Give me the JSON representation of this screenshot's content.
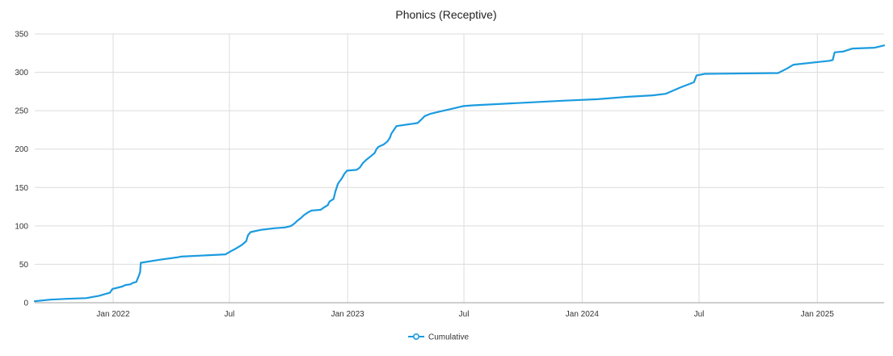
{
  "chart_data": {
    "type": "line",
    "title": "Phonics (Receptive)",
    "xlabel": "",
    "ylabel": "",
    "x_axis": {
      "type": "date",
      "range": [
        "2021-09-01",
        "2025-04-15"
      ],
      "ticks": [
        {
          "date": "2022-01-01",
          "label": "Jan 2022"
        },
        {
          "date": "2022-07-01",
          "label": "Jul"
        },
        {
          "date": "2023-01-01",
          "label": "Jan 2023"
        },
        {
          "date": "2023-07-01",
          "label": "Jul"
        },
        {
          "date": "2024-01-01",
          "label": "Jan 2024"
        },
        {
          "date": "2024-07-01",
          "label": "Jul"
        },
        {
          "date": "2025-01-01",
          "label": "Jan 2025"
        }
      ]
    },
    "y_axis": {
      "range": [
        0,
        350
      ],
      "ticks": [
        0,
        50,
        100,
        150,
        200,
        250,
        300,
        350
      ]
    },
    "grid": true,
    "legend": {
      "position": "bottom-center"
    },
    "colors": {
      "series": "#1a9be0"
    },
    "series": [
      {
        "name": "Cumulative",
        "points": [
          [
            "2021-09-01",
            2
          ],
          [
            "2021-09-25",
            4
          ],
          [
            "2021-10-20",
            5
          ],
          [
            "2021-11-20",
            6
          ],
          [
            "2021-12-10",
            9
          ],
          [
            "2021-12-27",
            13
          ],
          [
            "2021-12-31",
            18
          ],
          [
            "2022-01-15",
            21
          ],
          [
            "2022-01-20",
            23
          ],
          [
            "2022-01-28",
            24
          ],
          [
            "2022-02-01",
            26
          ],
          [
            "2022-02-06",
            27
          ],
          [
            "2022-02-10",
            35
          ],
          [
            "2022-02-12",
            40
          ],
          [
            "2022-02-13",
            52
          ],
          [
            "2022-03-15",
            56
          ],
          [
            "2022-04-10",
            59
          ],
          [
            "2022-04-16",
            60
          ],
          [
            "2022-06-25",
            63
          ],
          [
            "2022-07-01",
            66
          ],
          [
            "2022-07-10",
            70
          ],
          [
            "2022-07-20",
            75
          ],
          [
            "2022-07-27",
            80
          ],
          [
            "2022-07-30",
            88
          ],
          [
            "2022-08-03",
            92
          ],
          [
            "2022-08-20",
            95
          ],
          [
            "2022-09-10",
            97
          ],
          [
            "2022-09-25",
            98
          ],
          [
            "2022-10-05",
            100
          ],
          [
            "2022-10-10",
            103
          ],
          [
            "2022-10-15",
            107
          ],
          [
            "2022-10-20",
            110
          ],
          [
            "2022-10-25",
            114
          ],
          [
            "2022-11-01",
            118
          ],
          [
            "2022-11-06",
            120
          ],
          [
            "2022-11-20",
            121
          ],
          [
            "2022-11-25",
            124
          ],
          [
            "2022-12-01",
            127
          ],
          [
            "2022-12-04",
            132
          ],
          [
            "2022-12-10",
            135
          ],
          [
            "2022-12-13",
            145
          ],
          [
            "2022-12-17",
            155
          ],
          [
            "2022-12-23",
            162
          ],
          [
            "2022-12-27",
            168
          ],
          [
            "2022-12-31",
            172
          ],
          [
            "2023-01-15",
            173
          ],
          [
            "2023-01-20",
            176
          ],
          [
            "2023-01-25",
            182
          ],
          [
            "2023-01-30",
            186
          ],
          [
            "2023-02-05",
            190
          ],
          [
            "2023-02-12",
            195
          ],
          [
            "2023-02-15",
            200
          ],
          [
            "2023-02-18",
            203
          ],
          [
            "2023-02-26",
            206
          ],
          [
            "2023-03-04",
            210
          ],
          [
            "2023-03-08",
            215
          ],
          [
            "2023-03-10",
            220
          ],
          [
            "2023-03-14",
            225
          ],
          [
            "2023-03-18",
            230
          ],
          [
            "2023-04-20",
            234
          ],
          [
            "2023-04-25",
            238
          ],
          [
            "2023-05-01",
            243
          ],
          [
            "2023-05-10",
            246
          ],
          [
            "2023-05-25",
            249
          ],
          [
            "2023-06-10",
            252
          ],
          [
            "2023-06-20",
            254
          ],
          [
            "2023-06-30",
            256
          ],
          [
            "2023-07-15",
            257
          ],
          [
            "2023-12-01",
            263
          ],
          [
            "2024-01-25",
            265
          ],
          [
            "2024-03-10",
            268
          ],
          [
            "2024-04-20",
            270
          ],
          [
            "2024-05-10",
            272
          ],
          [
            "2024-06-01",
            280
          ],
          [
            "2024-06-23",
            287
          ],
          [
            "2024-06-27",
            296
          ],
          [
            "2024-07-10",
            298
          ],
          [
            "2024-11-01",
            299
          ],
          [
            "2024-11-15",
            305
          ],
          [
            "2024-11-25",
            310
          ],
          [
            "2025-01-20",
            315
          ],
          [
            "2025-01-25",
            316
          ],
          [
            "2025-01-28",
            326
          ],
          [
            "2025-02-10",
            327
          ],
          [
            "2025-02-25",
            331
          ],
          [
            "2025-03-31",
            332
          ],
          [
            "2025-04-15",
            335
          ]
        ]
      }
    ]
  }
}
